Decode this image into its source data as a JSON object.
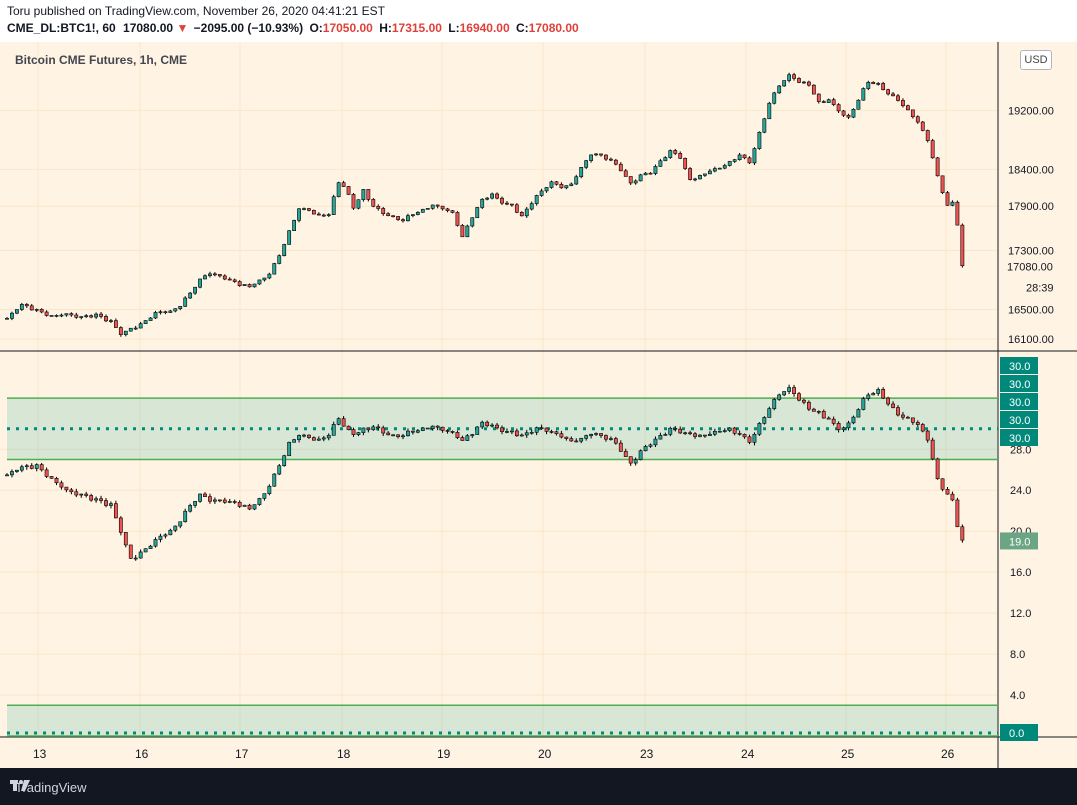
{
  "header": {
    "publish_line": "Toru published on TradingView.com, November 26, 2020 04:41:21 EST",
    "symbol": "CME_DL:BTC1!, 60",
    "last": "17080.00",
    "change": "−2095.00 (−10.93%)",
    "o_label": "O:",
    "o_value": "17050.00",
    "h_label": "H:",
    "h_value": "17315.00",
    "l_label": "L:",
    "l_value": "16940.00",
    "c_label": "C:",
    "c_value": "17080.00"
  },
  "currency_button": "USD",
  "footer": {
    "brand": "TradingView"
  },
  "colors": {
    "bg": "#fff4e3",
    "grid": "#fbe6c8",
    "up": "#26a69a",
    "down": "#ef5350",
    "wick": "#000000",
    "band_fill": "#26a69a",
    "band_line": "#4caf50",
    "dotted": "#00897b"
  },
  "chart_data": [
    {
      "type": "candlestick",
      "title": "Bitcoin CME Futures, 1h, CME",
      "y_ticks": [
        "16100.00",
        "16500.00",
        "17300.00",
        "17900.00",
        "18400.00",
        "19200.00"
      ],
      "ylim": [
        15950,
        20100
      ],
      "x_ticks": [
        "13",
        "16",
        "17",
        "18",
        "19",
        "20",
        "23",
        "24",
        "25",
        "26"
      ],
      "last_price_label": "17080.00",
      "countdown_label": "28:39",
      "price_path": [
        [
          0,
          16380
        ],
        [
          15,
          16560
        ],
        [
          30,
          16480
        ],
        [
          45,
          16400
        ],
        [
          60,
          16440
        ],
        [
          75,
          16390
        ],
        [
          90,
          16420
        ],
        [
          105,
          16330
        ],
        [
          115,
          16170
        ],
        [
          125,
          16230
        ],
        [
          135,
          16290
        ],
        [
          150,
          16440
        ],
        [
          165,
          16470
        ],
        [
          175,
          16550
        ],
        [
          185,
          16720
        ],
        [
          195,
          16900
        ],
        [
          205,
          16990
        ],
        [
          215,
          16950
        ],
        [
          225,
          16890
        ],
        [
          235,
          16830
        ],
        [
          245,
          16820
        ],
        [
          255,
          16880
        ],
        [
          265,
          16990
        ],
        [
          275,
          17240
        ],
        [
          285,
          17550
        ],
        [
          295,
          17880
        ],
        [
          305,
          17850
        ],
        [
          315,
          17760
        ],
        [
          325,
          17800
        ],
        [
          335,
          18220
        ],
        [
          342,
          18150
        ],
        [
          350,
          17880
        ],
        [
          360,
          18120
        ],
        [
          370,
          17900
        ],
        [
          380,
          17800
        ],
        [
          390,
          17750
        ],
        [
          400,
          17720
        ],
        [
          410,
          17800
        ],
        [
          420,
          17850
        ],
        [
          430,
          17920
        ],
        [
          440,
          17880
        ],
        [
          450,
          17800
        ],
        [
          460,
          17500
        ],
        [
          470,
          17750
        ],
        [
          480,
          17980
        ],
        [
          490,
          18050
        ],
        [
          500,
          17950
        ],
        [
          510,
          17900
        ],
        [
          520,
          17760
        ],
        [
          530,
          17950
        ],
        [
          540,
          18100
        ],
        [
          550,
          18220
        ],
        [
          560,
          18150
        ],
        [
          570,
          18200
        ],
        [
          580,
          18420
        ],
        [
          590,
          18600
        ],
        [
          600,
          18580
        ],
        [
          610,
          18520
        ],
        [
          620,
          18400
        ],
        [
          630,
          18200
        ],
        [
          640,
          18320
        ],
        [
          650,
          18350
        ],
        [
          660,
          18500
        ],
        [
          670,
          18650
        ],
        [
          680,
          18550
        ],
        [
          690,
          18250
        ],
        [
          700,
          18300
        ],
        [
          710,
          18380
        ],
        [
          720,
          18420
        ],
        [
          730,
          18500
        ],
        [
          740,
          18600
        ],
        [
          750,
          18500
        ],
        [
          760,
          18900
        ],
        [
          770,
          19300
        ],
        [
          780,
          19550
        ],
        [
          790,
          19680
        ],
        [
          800,
          19600
        ],
        [
          810,
          19550
        ],
        [
          820,
          19300
        ],
        [
          830,
          19350
        ],
        [
          840,
          19200
        ],
        [
          850,
          19100
        ],
        [
          860,
          19350
        ],
        [
          870,
          19600
        ],
        [
          880,
          19560
        ],
        [
          890,
          19430
        ],
        [
          900,
          19350
        ],
        [
          910,
          19200
        ],
        [
          920,
          19050
        ],
        [
          930,
          18800
        ],
        [
          940,
          18300
        ],
        [
          950,
          17900
        ],
        [
          955,
          17950
        ],
        [
          960,
          17650
        ],
        [
          965,
          17080
        ]
      ]
    },
    {
      "type": "candlestick",
      "title": "",
      "y_ticks": [
        "0.0",
        "4.0",
        "8.0",
        "12.0",
        "16.0",
        "20.0",
        "24.0",
        "28.0"
      ],
      "ylim": [
        0,
        37.5
      ],
      "band_upper": [
        27,
        33
      ],
      "band_lower": [
        0,
        3
      ],
      "dotted_levels": [
        30,
        0
      ],
      "badges": [
        "30.0",
        "30.0",
        "30.0",
        "30.0",
        "30.0",
        "19.0",
        "0.0"
      ],
      "value_path": [
        [
          0,
          25.5
        ],
        [
          15,
          26.2
        ],
        [
          30,
          26.3
        ],
        [
          45,
          25.0
        ],
        [
          60,
          24.0
        ],
        [
          75,
          23.5
        ],
        [
          90,
          23.0
        ],
        [
          105,
          22.5
        ],
        [
          115,
          20.0
        ],
        [
          125,
          17.2
        ],
        [
          135,
          17.8
        ],
        [
          150,
          19.0
        ],
        [
          165,
          20.0
        ],
        [
          175,
          21.0
        ],
        [
          185,
          22.5
        ],
        [
          195,
          23.5
        ],
        [
          205,
          23.0
        ],
        [
          215,
          23.0
        ],
        [
          225,
          22.8
        ],
        [
          235,
          22.5
        ],
        [
          245,
          22.3
        ],
        [
          255,
          23.0
        ],
        [
          265,
          24.5
        ],
        [
          275,
          26.5
        ],
        [
          285,
          28.5
        ],
        [
          295,
          29.5
        ],
        [
          305,
          29.2
        ],
        [
          315,
          28.8
        ],
        [
          325,
          29.5
        ],
        [
          335,
          31.0
        ],
        [
          342,
          30.0
        ],
        [
          350,
          29.5
        ],
        [
          360,
          30.0
        ],
        [
          370,
          30.2
        ],
        [
          380,
          29.6
        ],
        [
          390,
          29.3
        ],
        [
          400,
          29.5
        ],
        [
          410,
          29.8
        ],
        [
          420,
          30.0
        ],
        [
          430,
          30.3
        ],
        [
          440,
          30.0
        ],
        [
          450,
          29.5
        ],
        [
          460,
          29.0
        ],
        [
          470,
          29.5
        ],
        [
          480,
          30.5
        ],
        [
          490,
          30.2
        ],
        [
          500,
          29.8
        ],
        [
          510,
          29.6
        ],
        [
          520,
          29.3
        ],
        [
          530,
          29.8
        ],
        [
          540,
          30.0
        ],
        [
          550,
          29.6
        ],
        [
          560,
          29.2
        ],
        [
          570,
          28.8
        ],
        [
          580,
          29.0
        ],
        [
          590,
          29.5
        ],
        [
          600,
          29.2
        ],
        [
          610,
          29.0
        ],
        [
          620,
          28.0
        ],
        [
          630,
          26.5
        ],
        [
          640,
          27.8
        ],
        [
          650,
          28.5
        ],
        [
          660,
          29.2
        ],
        [
          670,
          30.0
        ],
        [
          680,
          29.6
        ],
        [
          690,
          29.4
        ],
        [
          700,
          29.2
        ],
        [
          710,
          29.5
        ],
        [
          720,
          29.8
        ],
        [
          730,
          30.0
        ],
        [
          740,
          29.5
        ],
        [
          750,
          28.8
        ],
        [
          760,
          30.5
        ],
        [
          770,
          32.0
        ],
        [
          780,
          33.5
        ],
        [
          790,
          34.0
        ],
        [
          800,
          33.0
        ],
        [
          810,
          32.0
        ],
        [
          820,
          31.5
        ],
        [
          830,
          31.0
        ],
        [
          840,
          30.0
        ],
        [
          850,
          30.5
        ],
        [
          860,
          32.0
        ],
        [
          870,
          33.5
        ],
        [
          880,
          33.8
        ],
        [
          890,
          32.5
        ],
        [
          900,
          31.5
        ],
        [
          910,
          31.0
        ],
        [
          920,
          30.5
        ],
        [
          930,
          29.0
        ],
        [
          940,
          25.0
        ],
        [
          950,
          23.5
        ],
        [
          955,
          23.0
        ],
        [
          960,
          20.5
        ],
        [
          965,
          19.0
        ]
      ]
    }
  ]
}
